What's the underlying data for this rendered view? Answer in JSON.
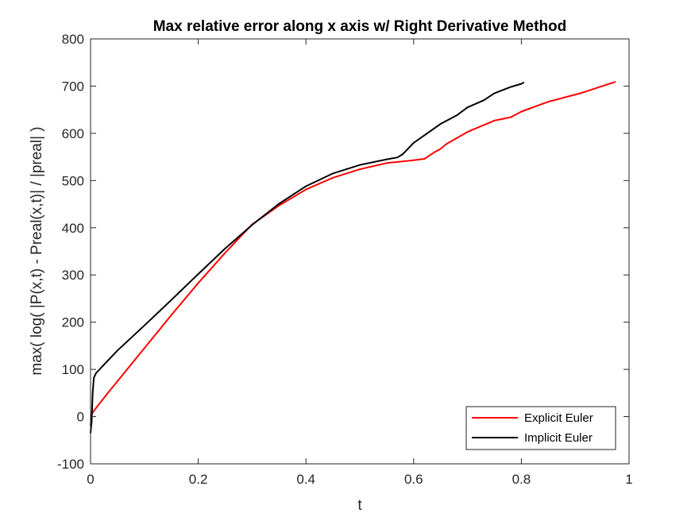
{
  "chart_data": {
    "type": "line",
    "title": "Max relative error along x axis w/ Right Derivative Method",
    "xlabel": "t",
    "ylabel": "max( log( |P(x,t) - Preal(x,t)| / |preal| )",
    "xlim": [
      0,
      1
    ],
    "ylim": [
      -100,
      800
    ],
    "xticks": [
      0,
      0.2,
      0.4,
      0.6,
      0.8,
      1
    ],
    "xtick_labels": [
      "0",
      "0.2",
      "0.4",
      "0.6",
      "0.8",
      "1"
    ],
    "yticks": [
      -100,
      0,
      100,
      200,
      300,
      400,
      500,
      600,
      700,
      800
    ],
    "ytick_labels": [
      "-100",
      "0",
      "100",
      "200",
      "300",
      "400",
      "500",
      "600",
      "700",
      "800"
    ],
    "grid": false,
    "legend_position": "bottom-right",
    "series": [
      {
        "name": "Explicit Euler",
        "color": "#ff0000",
        "x": [
          0,
          0.002,
          0.005,
          0.01,
          0.03,
          0.05,
          0.1,
          0.15,
          0.2,
          0.25,
          0.3,
          0.35,
          0.4,
          0.45,
          0.5,
          0.55,
          0.6,
          0.62,
          0.64,
          0.65,
          0.66,
          0.7,
          0.75,
          0.78,
          0.8,
          0.85,
          0.9,
          0.91,
          0.95,
          0.975
        ],
        "y": [
          -20,
          5,
          10,
          18,
          47,
          75,
          145,
          215,
          283,
          347,
          407,
          447,
          481,
          506,
          524,
          537,
          543,
          546,
          561,
          567,
          577,
          603,
          627,
          634,
          646,
          667,
          682,
          685,
          700,
          709
        ]
      },
      {
        "name": "Implicit Euler",
        "color": "#000000",
        "x": [
          0,
          0.002,
          0.004,
          0.006,
          0.01,
          0.05,
          0.1,
          0.15,
          0.2,
          0.25,
          0.3,
          0.35,
          0.4,
          0.45,
          0.5,
          0.55,
          0.57,
          0.58,
          0.6,
          0.62,
          0.65,
          0.68,
          0.7,
          0.73,
          0.75,
          0.78,
          0.8,
          0.805
        ],
        "y": [
          -35,
          -10,
          50,
          82,
          92,
          140,
          193,
          247,
          302,
          356,
          406,
          451,
          488,
          515,
          533,
          545,
          549,
          556,
          580,
          596,
          620,
          638,
          655,
          670,
          685,
          698,
          705,
          708
        ]
      }
    ]
  }
}
